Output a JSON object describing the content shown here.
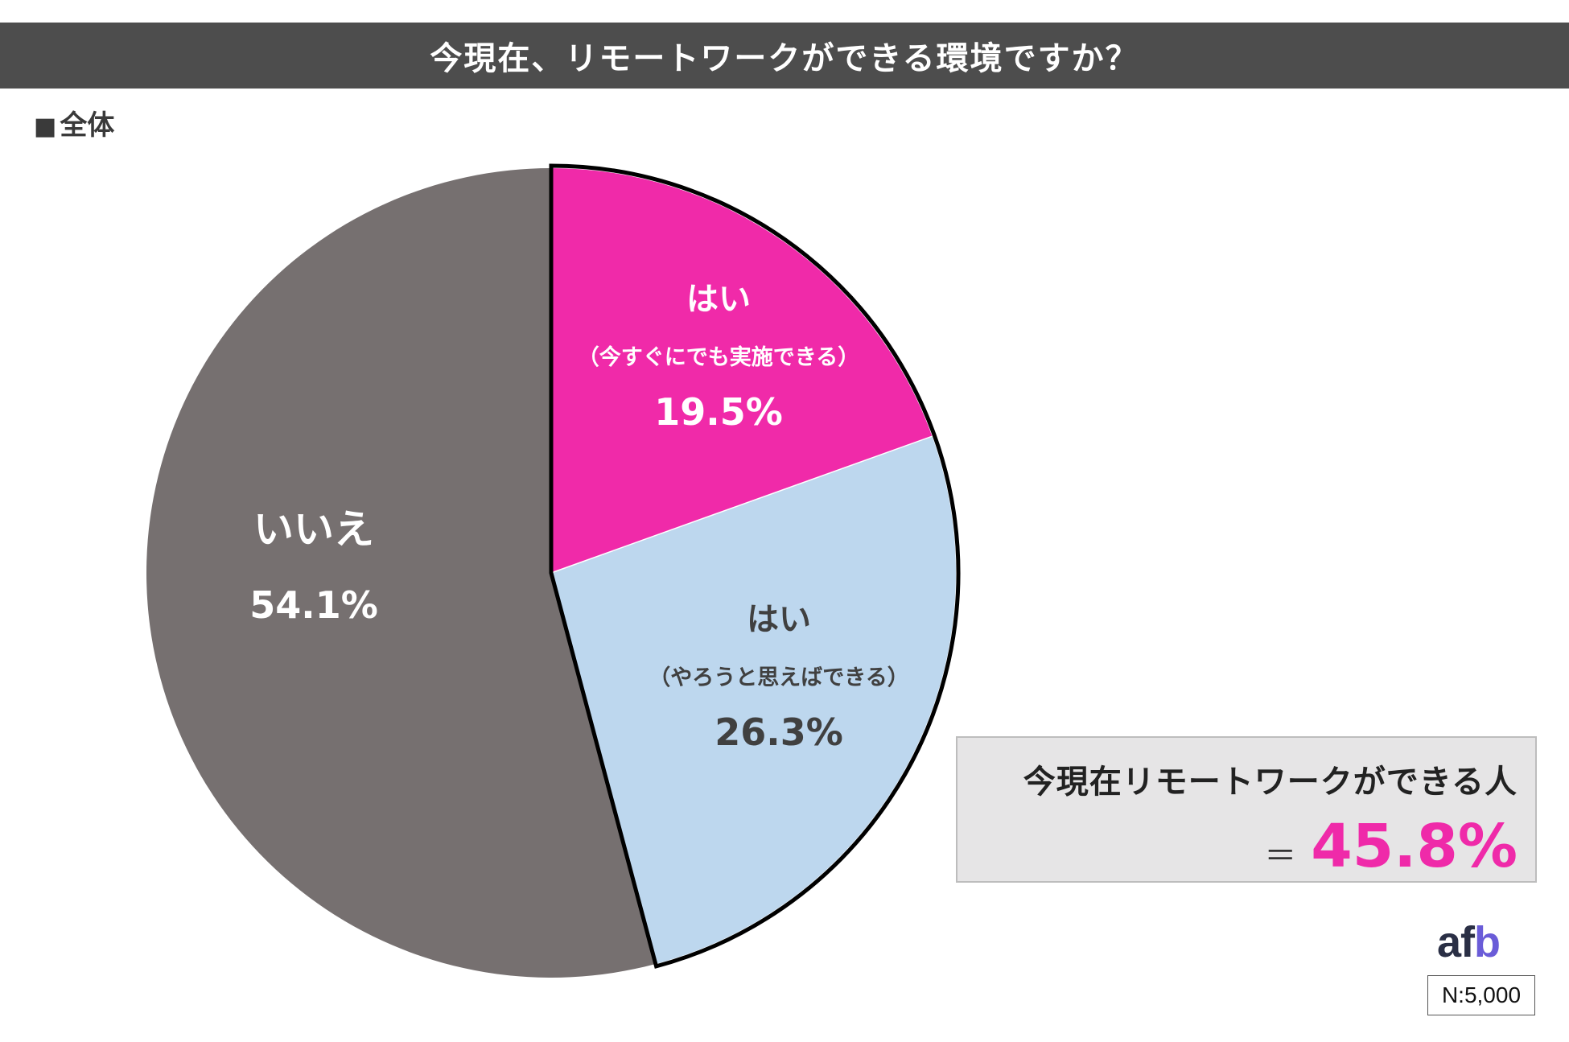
{
  "title": "今現在、リモートワークができる環境ですか？",
  "subset": {
    "marker": "■",
    "label": "全体"
  },
  "chart_data": {
    "type": "pie",
    "start": "12 o'clock",
    "direction": "clockwise",
    "slices": [
      {
        "label": "はい",
        "sublabel": "（今すぐにでも実施できる）",
        "value": 19.5,
        "value_label": "19.5%",
        "color": "#f02aa9",
        "text_color": "#ffffff"
      },
      {
        "label": "はい",
        "sublabel": "（やろうと思えばできる）",
        "value": 26.3,
        "value_label": "26.3%",
        "color": "#bdd7ee",
        "text_color": "#404040"
      },
      {
        "label": "いいえ",
        "sublabel": "",
        "value": 54.1,
        "value_label": "54.1%",
        "color": "#767070",
        "text_color": "#ffffff"
      }
    ],
    "highlight_outline": {
      "applies_to": [
        "はい (今すぐにでも実施できる)",
        "はい (やろうと思えばできる)"
      ],
      "color": "#000000"
    }
  },
  "summary": {
    "line1": "今現在リモートワークができる人",
    "equals": "＝",
    "value": "45.8%",
    "value_color": "#ef2aa9"
  },
  "brand": {
    "text_main": "af",
    "text_accent": "b"
  },
  "sample": "N:5,000"
}
